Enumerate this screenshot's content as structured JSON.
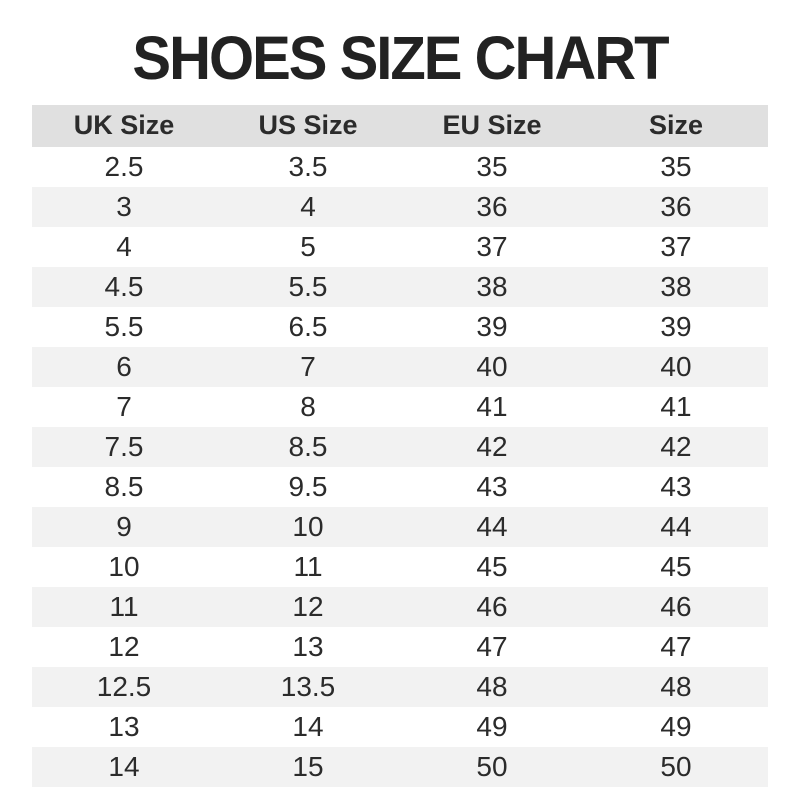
{
  "title": "SHOES SIZE CHART",
  "colors": {
    "header_bg": "#e0e0e0",
    "row_alt_bg": "#f2f2f2",
    "title_color": "#222222",
    "text_color": "#2b2b2b"
  },
  "chart_data": {
    "type": "table",
    "title": "SHOES SIZE CHART",
    "columns": [
      "UK Size",
      "US Size",
      "EU Size",
      "Size"
    ],
    "rows": [
      [
        "2.5",
        "3.5",
        "35",
        "35"
      ],
      [
        "3",
        "4",
        "36",
        "36"
      ],
      [
        "4",
        "5",
        "37",
        "37"
      ],
      [
        "4.5",
        "5.5",
        "38",
        "38"
      ],
      [
        "5.5",
        "6.5",
        "39",
        "39"
      ],
      [
        "6",
        "7",
        "40",
        "40"
      ],
      [
        "7",
        "8",
        "41",
        "41"
      ],
      [
        "7.5",
        "8.5",
        "42",
        "42"
      ],
      [
        "8.5",
        "9.5",
        "43",
        "43"
      ],
      [
        "9",
        "10",
        "44",
        "44"
      ],
      [
        "10",
        "11",
        "45",
        "45"
      ],
      [
        "11",
        "12",
        "46",
        "46"
      ],
      [
        "12",
        "13",
        "47",
        "47"
      ],
      [
        "12.5",
        "13.5",
        "48",
        "48"
      ],
      [
        "13",
        "14",
        "49",
        "49"
      ],
      [
        "14",
        "15",
        "50",
        "50"
      ]
    ],
    "layout": {
      "striped": true,
      "header_background": "#e0e0e0",
      "alt_row_background": "#f2f2f2"
    }
  }
}
